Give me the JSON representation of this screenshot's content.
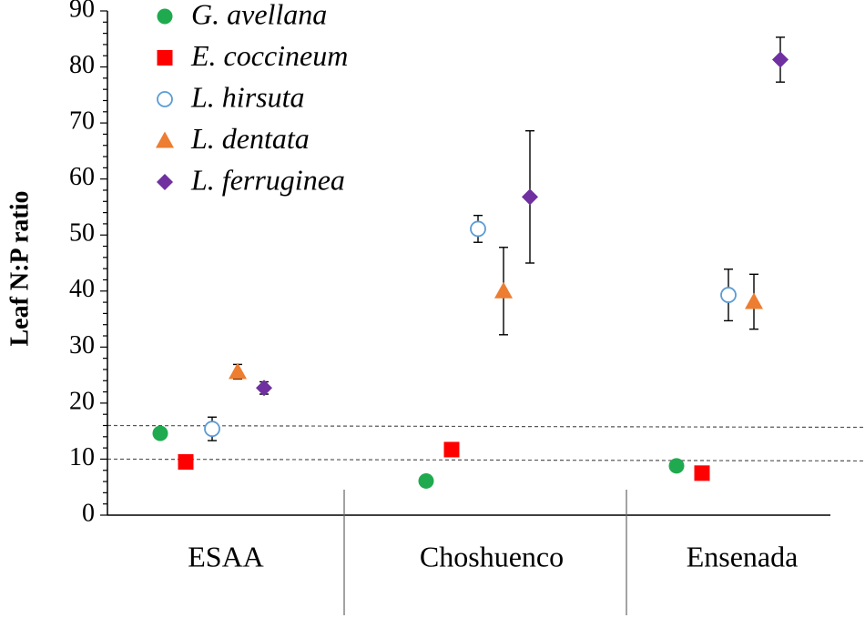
{
  "chart_data": {
    "type": "scatter",
    "title": "",
    "xlabel": "",
    "ylabel": "Leaf N:P ratio",
    "ylim": [
      0,
      90
    ],
    "yticks": [
      0,
      10,
      20,
      30,
      40,
      50,
      60,
      70,
      80,
      90
    ],
    "categories": [
      "ESAA",
      "Choshuenco",
      "Ensenada"
    ],
    "reference_lines": [
      10,
      16
    ],
    "legend_position": "top-left",
    "series": [
      {
        "name": "G. avellana",
        "marker": "circle-filled",
        "color": "#1faa4f",
        "values": [
          14.6,
          6.1,
          8.8
        ],
        "errors": [
          null,
          null,
          null
        ]
      },
      {
        "name": "E. coccineum",
        "marker": "square",
        "color": "#ff0000",
        "values": [
          9.5,
          11.7,
          7.5
        ],
        "errors": [
          null,
          null,
          null
        ]
      },
      {
        "name": "L. hirsuta",
        "marker": "circle-open",
        "color": "#5b9bd5",
        "values": [
          15.4,
          51.1,
          39.3
        ],
        "errors": [
          2.1,
          2.4,
          4.6
        ]
      },
      {
        "name": "L. dentata",
        "marker": "triangle",
        "color": "#ed7d31",
        "values": [
          25.6,
          40.0,
          38.1
        ],
        "errors": [
          1.3,
          7.8,
          4.9
        ]
      },
      {
        "name": "L. ferruginea",
        "marker": "diamond",
        "color": "#7030a0",
        "values": [
          22.7,
          56.8,
          81.3
        ],
        "errors": [
          1.1,
          11.8,
          4.0
        ]
      }
    ]
  }
}
